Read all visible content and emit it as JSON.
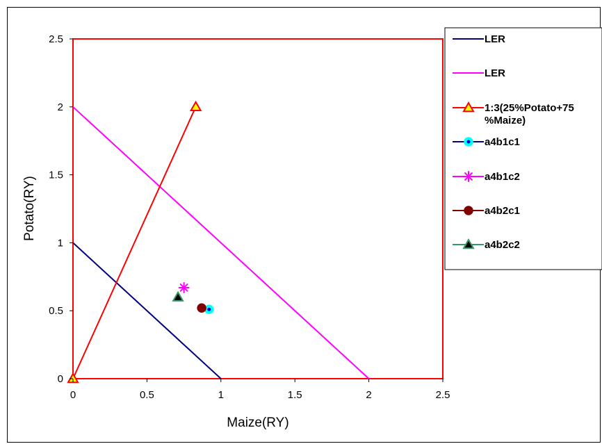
{
  "chart_data": {
    "type": "scatter",
    "title": "",
    "xlabel": "Maize(RY)",
    "ylabel": "Potato(RY)",
    "xlim": [
      0,
      2.5
    ],
    "ylim": [
      0,
      2.5
    ],
    "x_ticks": [
      "0",
      "0.5",
      "1",
      "1.5",
      "2",
      "2.5"
    ],
    "y_ticks": [
      "0",
      "0.5",
      "1",
      "1.5",
      "2",
      "2.5"
    ],
    "plot_border_color": "#ff0000",
    "grid": false,
    "legend_position": "right",
    "series": [
      {
        "name": "LER",
        "mode": "line",
        "color": "#000080",
        "marker": "none",
        "points": [
          [
            0,
            1
          ],
          [
            1,
            0
          ]
        ]
      },
      {
        "name": "LER",
        "mode": "line",
        "color": "#ff00ff",
        "marker": "none",
        "points": [
          [
            0,
            2
          ],
          [
            2,
            0
          ]
        ]
      },
      {
        "name": "1:3(25%Potato+75%Maize)",
        "mode": "line",
        "color": "#ff0000",
        "marker": "triangle",
        "marker_fill": "#ffff00",
        "marker_stroke": "#ff0000",
        "points": [
          [
            0,
            0
          ],
          [
            0.83,
            2
          ]
        ]
      },
      {
        "name": "a4b1c1",
        "mode": "marker",
        "color": "#000080",
        "marker": "circle",
        "marker_fill": "#00ffff",
        "marker_stroke": "#00ffff",
        "marker_core": "#0000cc",
        "points": [
          [
            0.92,
            0.51
          ]
        ]
      },
      {
        "name": "a4b1c2",
        "mode": "marker",
        "color": "#ff00ff",
        "marker": "star",
        "marker_fill": "#ff00ff",
        "marker_stroke": "#ff00ff",
        "points": [
          [
            0.75,
            0.67
          ]
        ]
      },
      {
        "name": "a4b2c1",
        "mode": "marker",
        "color": "#800000",
        "marker": "circle",
        "marker_fill": "#800000",
        "marker_stroke": "#800000",
        "points": [
          [
            0.87,
            0.52
          ]
        ]
      },
      {
        "name": "a4b2c2",
        "mode": "marker",
        "color": "#339966",
        "marker": "triangle",
        "marker_fill": "#000000",
        "marker_stroke": "#339966",
        "points": [
          [
            0.71,
            0.6
          ]
        ]
      }
    ],
    "legend": {
      "entries": [
        {
          "label_lines": [
            "LER"
          ]
        },
        {
          "label_lines": [
            "LER"
          ]
        },
        {
          "label_lines": [
            "1:3(25%Potato+75",
            "%Maize)"
          ]
        },
        {
          "label_lines": [
            "a4b1c1"
          ]
        },
        {
          "label_lines": [
            "a4b1c2"
          ]
        },
        {
          "label_lines": [
            "a4b2c1"
          ]
        },
        {
          "label_lines": [
            "a4b2c2"
          ]
        }
      ]
    }
  }
}
